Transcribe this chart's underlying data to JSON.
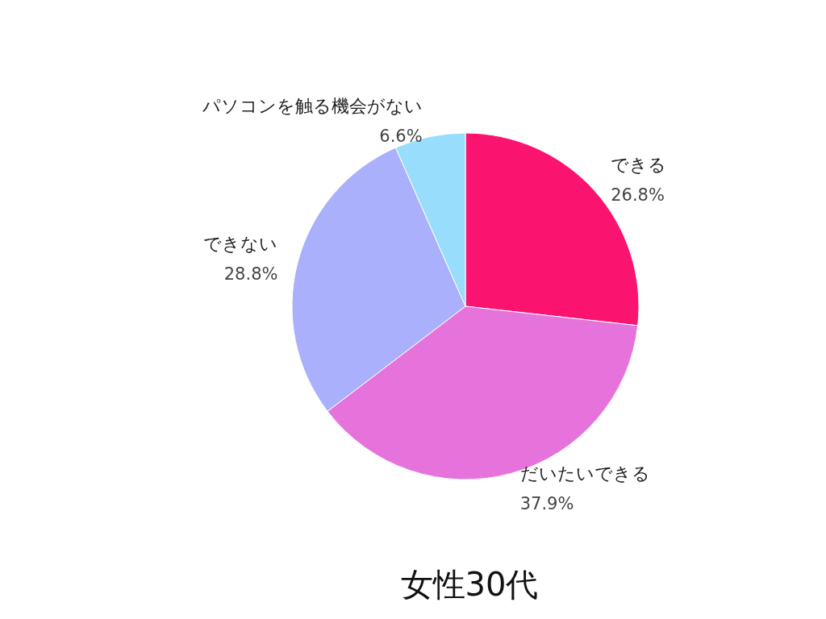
{
  "chart_data": {
    "type": "pie",
    "title": "女性30代",
    "categories": [
      "できる",
      "だいたいできる",
      "できない",
      "パソコンを触る機会がない"
    ],
    "values": [
      26.8,
      37.9,
      28.8,
      6.6
    ],
    "value_labels": [
      "26.8%",
      "37.9%",
      "28.8%",
      "6.6%"
    ],
    "colors": [
      "#fa1470",
      "#e673dc",
      "#aab0fc",
      "#99ddfc"
    ],
    "legend": false
  }
}
